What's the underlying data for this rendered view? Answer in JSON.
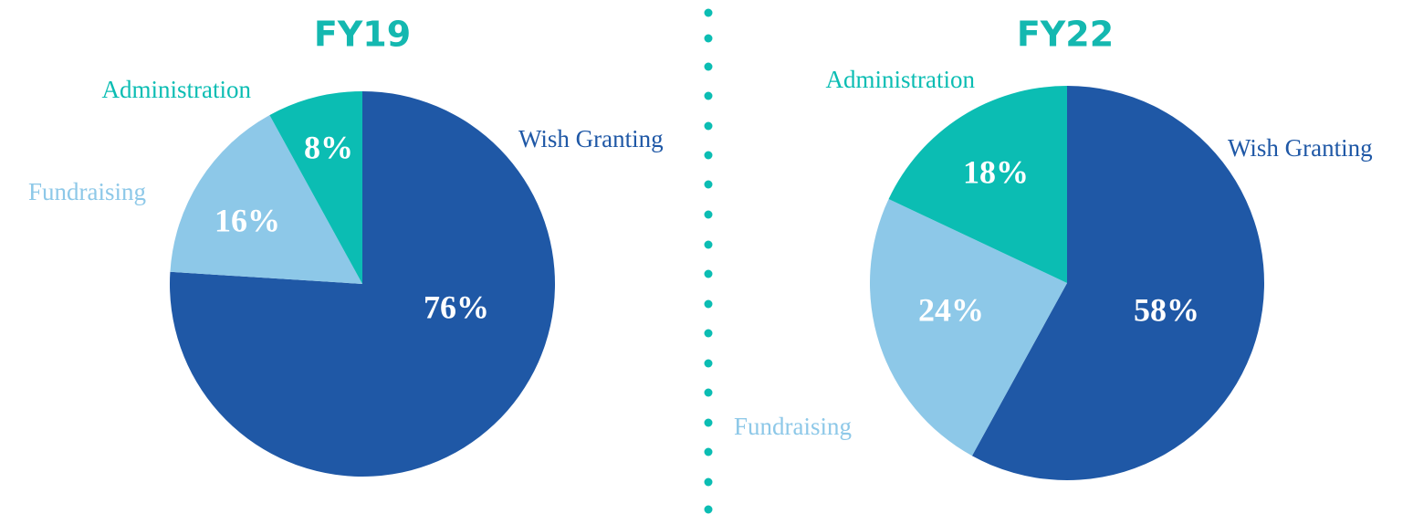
{
  "chart_data": [
    {
      "type": "pie",
      "title": "FY19",
      "categories": [
        "Wish Granting",
        "Fundraising",
        "Administration"
      ],
      "values": [
        76,
        16,
        8
      ],
      "value_labels": [
        "76%",
        "16%",
        "8%"
      ],
      "colors": [
        "#1f58a6",
        "#8dc8e8",
        "#0bbdb3"
      ]
    },
    {
      "type": "pie",
      "title": "FY22",
      "categories": [
        "Wish Granting",
        "Fundraising",
        "Administration"
      ],
      "values": [
        58,
        24,
        18
      ],
      "value_labels": [
        "58%",
        "24%",
        "18%"
      ],
      "colors": [
        "#1f58a6",
        "#8dc8e8",
        "#0bbdb3"
      ]
    }
  ]
}
